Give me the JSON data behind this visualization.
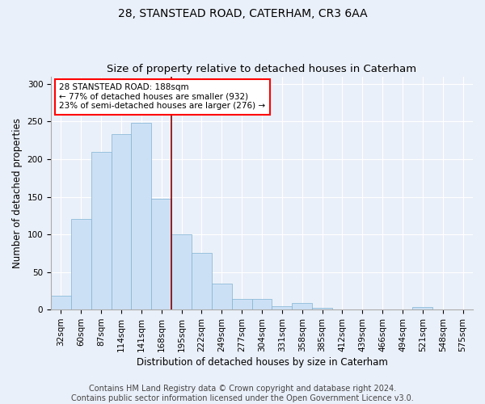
{
  "title_line1": "28, STANSTEAD ROAD, CATERHAM, CR3 6AA",
  "title_line2": "Size of property relative to detached houses in Caterham",
  "xlabel": "Distribution of detached houses by size in Caterham",
  "ylabel": "Number of detached properties",
  "categories": [
    "32sqm",
    "60sqm",
    "87sqm",
    "114sqm",
    "141sqm",
    "168sqm",
    "195sqm",
    "222sqm",
    "249sqm",
    "277sqm",
    "304sqm",
    "331sqm",
    "358sqm",
    "385sqm",
    "412sqm",
    "439sqm",
    "466sqm",
    "494sqm",
    "521sqm",
    "548sqm",
    "575sqm"
  ],
  "values": [
    18,
    120,
    210,
    233,
    248,
    147,
    100,
    75,
    35,
    14,
    14,
    5,
    9,
    2,
    0,
    0,
    0,
    0,
    3,
    0,
    0
  ],
  "bar_color": "#cce0f5",
  "bar_edge_color": "#7fb3d3",
  "highlight_line_color": "#8b0000",
  "annotation_text": "28 STANSTEAD ROAD: 188sqm\n← 77% of detached houses are smaller (932)\n23% of semi-detached houses are larger (276) →",
  "annotation_box_color": "white",
  "annotation_box_edge_color": "red",
  "ylim": [
    0,
    310
  ],
  "yticks": [
    0,
    50,
    100,
    150,
    200,
    250,
    300
  ],
  "footer_line1": "Contains HM Land Registry data © Crown copyright and database right 2024.",
  "footer_line2": "Contains public sector information licensed under the Open Government Licence v3.0.",
  "background_color": "#eaf0f9",
  "plot_background_color": "#eaf0f9",
  "title_fontsize": 10,
  "subtitle_fontsize": 9.5,
  "label_fontsize": 8.5,
  "tick_fontsize": 7.5,
  "footer_fontsize": 7
}
